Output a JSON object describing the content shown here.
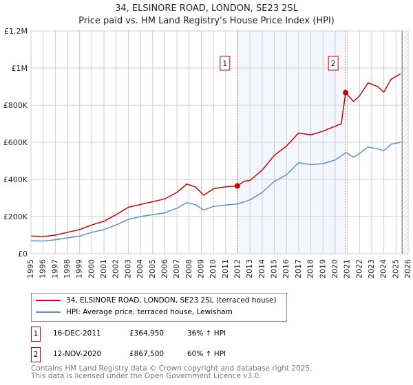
{
  "chart_data": {
    "type": "line",
    "title": "34, ELSINORE ROAD, LONDON, SE23 2SL",
    "subtitle": "Price paid vs. HM Land Registry's House Price Index (HPI)",
    "xlim": [
      1995,
      2026
    ],
    "ylim": [
      0,
      1200000
    ],
    "x_ticks": [
      "1995",
      "1996",
      "1997",
      "1998",
      "1999",
      "2000",
      "2001",
      "2002",
      "2003",
      "2004",
      "2005",
      "2006",
      "2007",
      "2008",
      "2009",
      "2010",
      "2011",
      "2012",
      "2013",
      "2014",
      "2015",
      "2016",
      "2017",
      "2018",
      "2019",
      "2020",
      "2021",
      "2022",
      "2023",
      "2024",
      "2025",
      "2026"
    ],
    "y_ticks": [
      {
        "v": 0,
        "label": "£0"
      },
      {
        "v": 200000,
        "label": "£200K"
      },
      {
        "v": 400000,
        "label": "£400K"
      },
      {
        "v": 600000,
        "label": "£600K"
      },
      {
        "v": 800000,
        "label": "£800K"
      },
      {
        "v": 1000000,
        "label": "£1M"
      },
      {
        "v": 1200000,
        "label": "£1.2M"
      }
    ],
    "grid": true,
    "series": [
      {
        "name": "34, ELSINORE ROAD, LONDON, SE23 2SL (terraced house)",
        "color": "#cc0000",
        "x": [
          1995,
          1996,
          1997,
          1998,
          1999,
          2000,
          2001,
          2002,
          2003,
          2004,
          2005,
          2006,
          2007,
          2007.8,
          2008.5,
          2009.2,
          2010,
          2011,
          2011.96,
          2012.5,
          2013,
          2014,
          2015,
          2016,
          2017,
          2018,
          2019,
          2020.5,
          2020.86,
          2021.5,
          2022,
          2022.7,
          2023.5,
          2024,
          2024.6,
          2025.4
        ],
        "y": [
          95000,
          92000,
          100000,
          115000,
          130000,
          155000,
          175000,
          210000,
          250000,
          265000,
          280000,
          295000,
          330000,
          375000,
          360000,
          315000,
          350000,
          360000,
          364950,
          390000,
          395000,
          450000,
          530000,
          580000,
          650000,
          640000,
          660000,
          700000,
          867500,
          820000,
          850000,
          920000,
          900000,
          870000,
          940000,
          970000
        ]
      },
      {
        "name": "HPI: Average price, terraced house, Lewisham",
        "color": "#5b8fd4",
        "x": [
          1995,
          1996,
          1997,
          1998,
          1999,
          2000,
          2001,
          2002,
          2003,
          2004,
          2005,
          2006,
          2007,
          2007.8,
          2008.5,
          2009.2,
          2010,
          2011,
          2012,
          2013,
          2014,
          2015,
          2016,
          2017,
          2018,
          2019,
          2020,
          2020.9,
          2021.5,
          2022,
          2022.7,
          2023.5,
          2024,
          2024.6,
          2025.4
        ],
        "y": [
          70000,
          68000,
          75000,
          85000,
          95000,
          115000,
          130000,
          155000,
          185000,
          200000,
          210000,
          220000,
          245000,
          275000,
          265000,
          235000,
          255000,
          262000,
          268000,
          290000,
          330000,
          390000,
          425000,
          490000,
          480000,
          485000,
          505000,
          545000,
          520000,
          540000,
          575000,
          565000,
          555000,
          590000,
          600000
        ]
      }
    ],
    "annotations": [
      {
        "label": "1",
        "x": 2011.96,
        "y": 364950
      },
      {
        "label": "2",
        "x": 2020.86,
        "y": 867500
      }
    ],
    "data_end": 2025.5
  },
  "legend": [
    "34, ELSINORE ROAD, LONDON, SE23 2SL (terraced house)",
    "HPI: Average price, terraced house, Lewisham"
  ],
  "sales": [
    {
      "n": "1",
      "date": "16-DEC-2011",
      "price": "£364,950",
      "hpi": "36% ↑ HPI"
    },
    {
      "n": "2",
      "date": "12-NOV-2020",
      "price": "£867,500",
      "hpi": "60% ↑ HPI"
    }
  ],
  "footer": [
    "Contains HM Land Registry data © Crown copyright and database right 2025.",
    "This data is licensed under the Open Government Licence v3.0."
  ]
}
